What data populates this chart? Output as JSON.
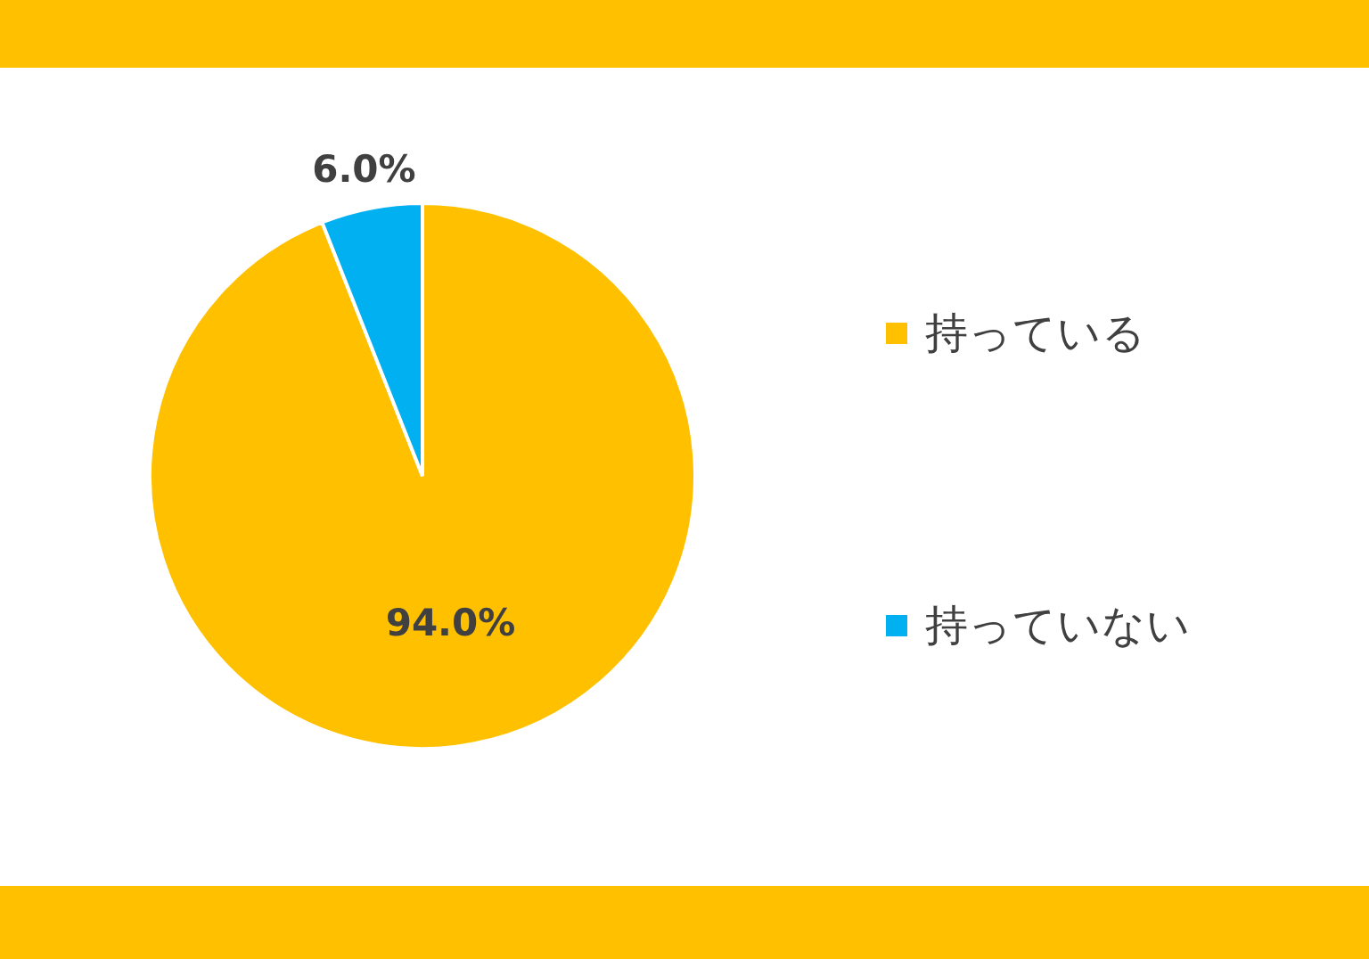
{
  "chart_data": {
    "type": "pie",
    "categories": [
      "持っている",
      "持っていない"
    ],
    "values": [
      94.0,
      6.0
    ],
    "colors": [
      "#ffc000",
      "#00b0f0"
    ],
    "value_labels": [
      "94.0%",
      "6.0%"
    ],
    "legend": "right"
  }
}
